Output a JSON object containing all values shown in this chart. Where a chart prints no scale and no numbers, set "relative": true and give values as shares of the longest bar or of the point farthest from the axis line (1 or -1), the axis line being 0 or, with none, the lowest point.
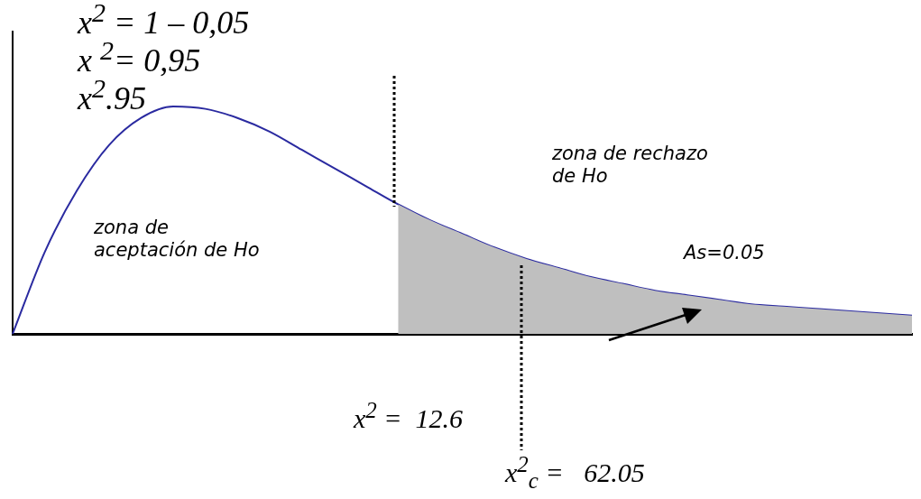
{
  "chart_data": {
    "type": "line",
    "relative": true,
    "categories": [
      null,
      null,
      null,
      null,
      null,
      null,
      null,
      null,
      null,
      null,
      null,
      null,
      null,
      null,
      null,
      null,
      null,
      null,
      null,
      null,
      null,
      null,
      null,
      null,
      null,
      null,
      null,
      null,
      null
    ],
    "series": [
      {
        "type": "area",
        "color": "#bfbfbf",
        "values": [
          null,
          null,
          null,
          null,
          null,
          null,
          null,
          null,
          null,
          null,
          null,
          null,
          0.57,
          0.5,
          0.44,
          0.38,
          0.33,
          0.29,
          0.25,
          0.22,
          0.19,
          0.17,
          0.15,
          0.13,
          0.12,
          0.11,
          0.1,
          0.09,
          0.08
        ]
      },
      {
        "color": "#2a2aa0",
        "values": [
          0,
          0.36,
          0.63,
          0.83,
          0.95,
          1.0,
          0.99,
          0.95,
          0.89,
          0.81,
          0.73,
          0.65,
          0.57,
          0.5,
          0.44,
          0.38,
          0.33,
          0.29,
          0.25,
          0.22,
          0.19,
          0.17,
          0.15,
          0.13,
          0.12,
          0.11,
          0.1,
          0.09,
          0.08
        ]
      }
    ],
    "annotations": [
      "x$^{2}$ = 1 – 0,05",
      "x $^{2}$= 0,95",
      "x$^{2}$.95",
      "zona de aceptación de Ho",
      "zona de rechazo de Ho",
      "As=0.05",
      "x$^{2}$ =  12.6",
      "x$^{2}$$_{c}$ =   62.05"
    ],
    "grid": false,
    "legend": false,
    "marker": "none",
    "line_style": "solid"
  }
}
